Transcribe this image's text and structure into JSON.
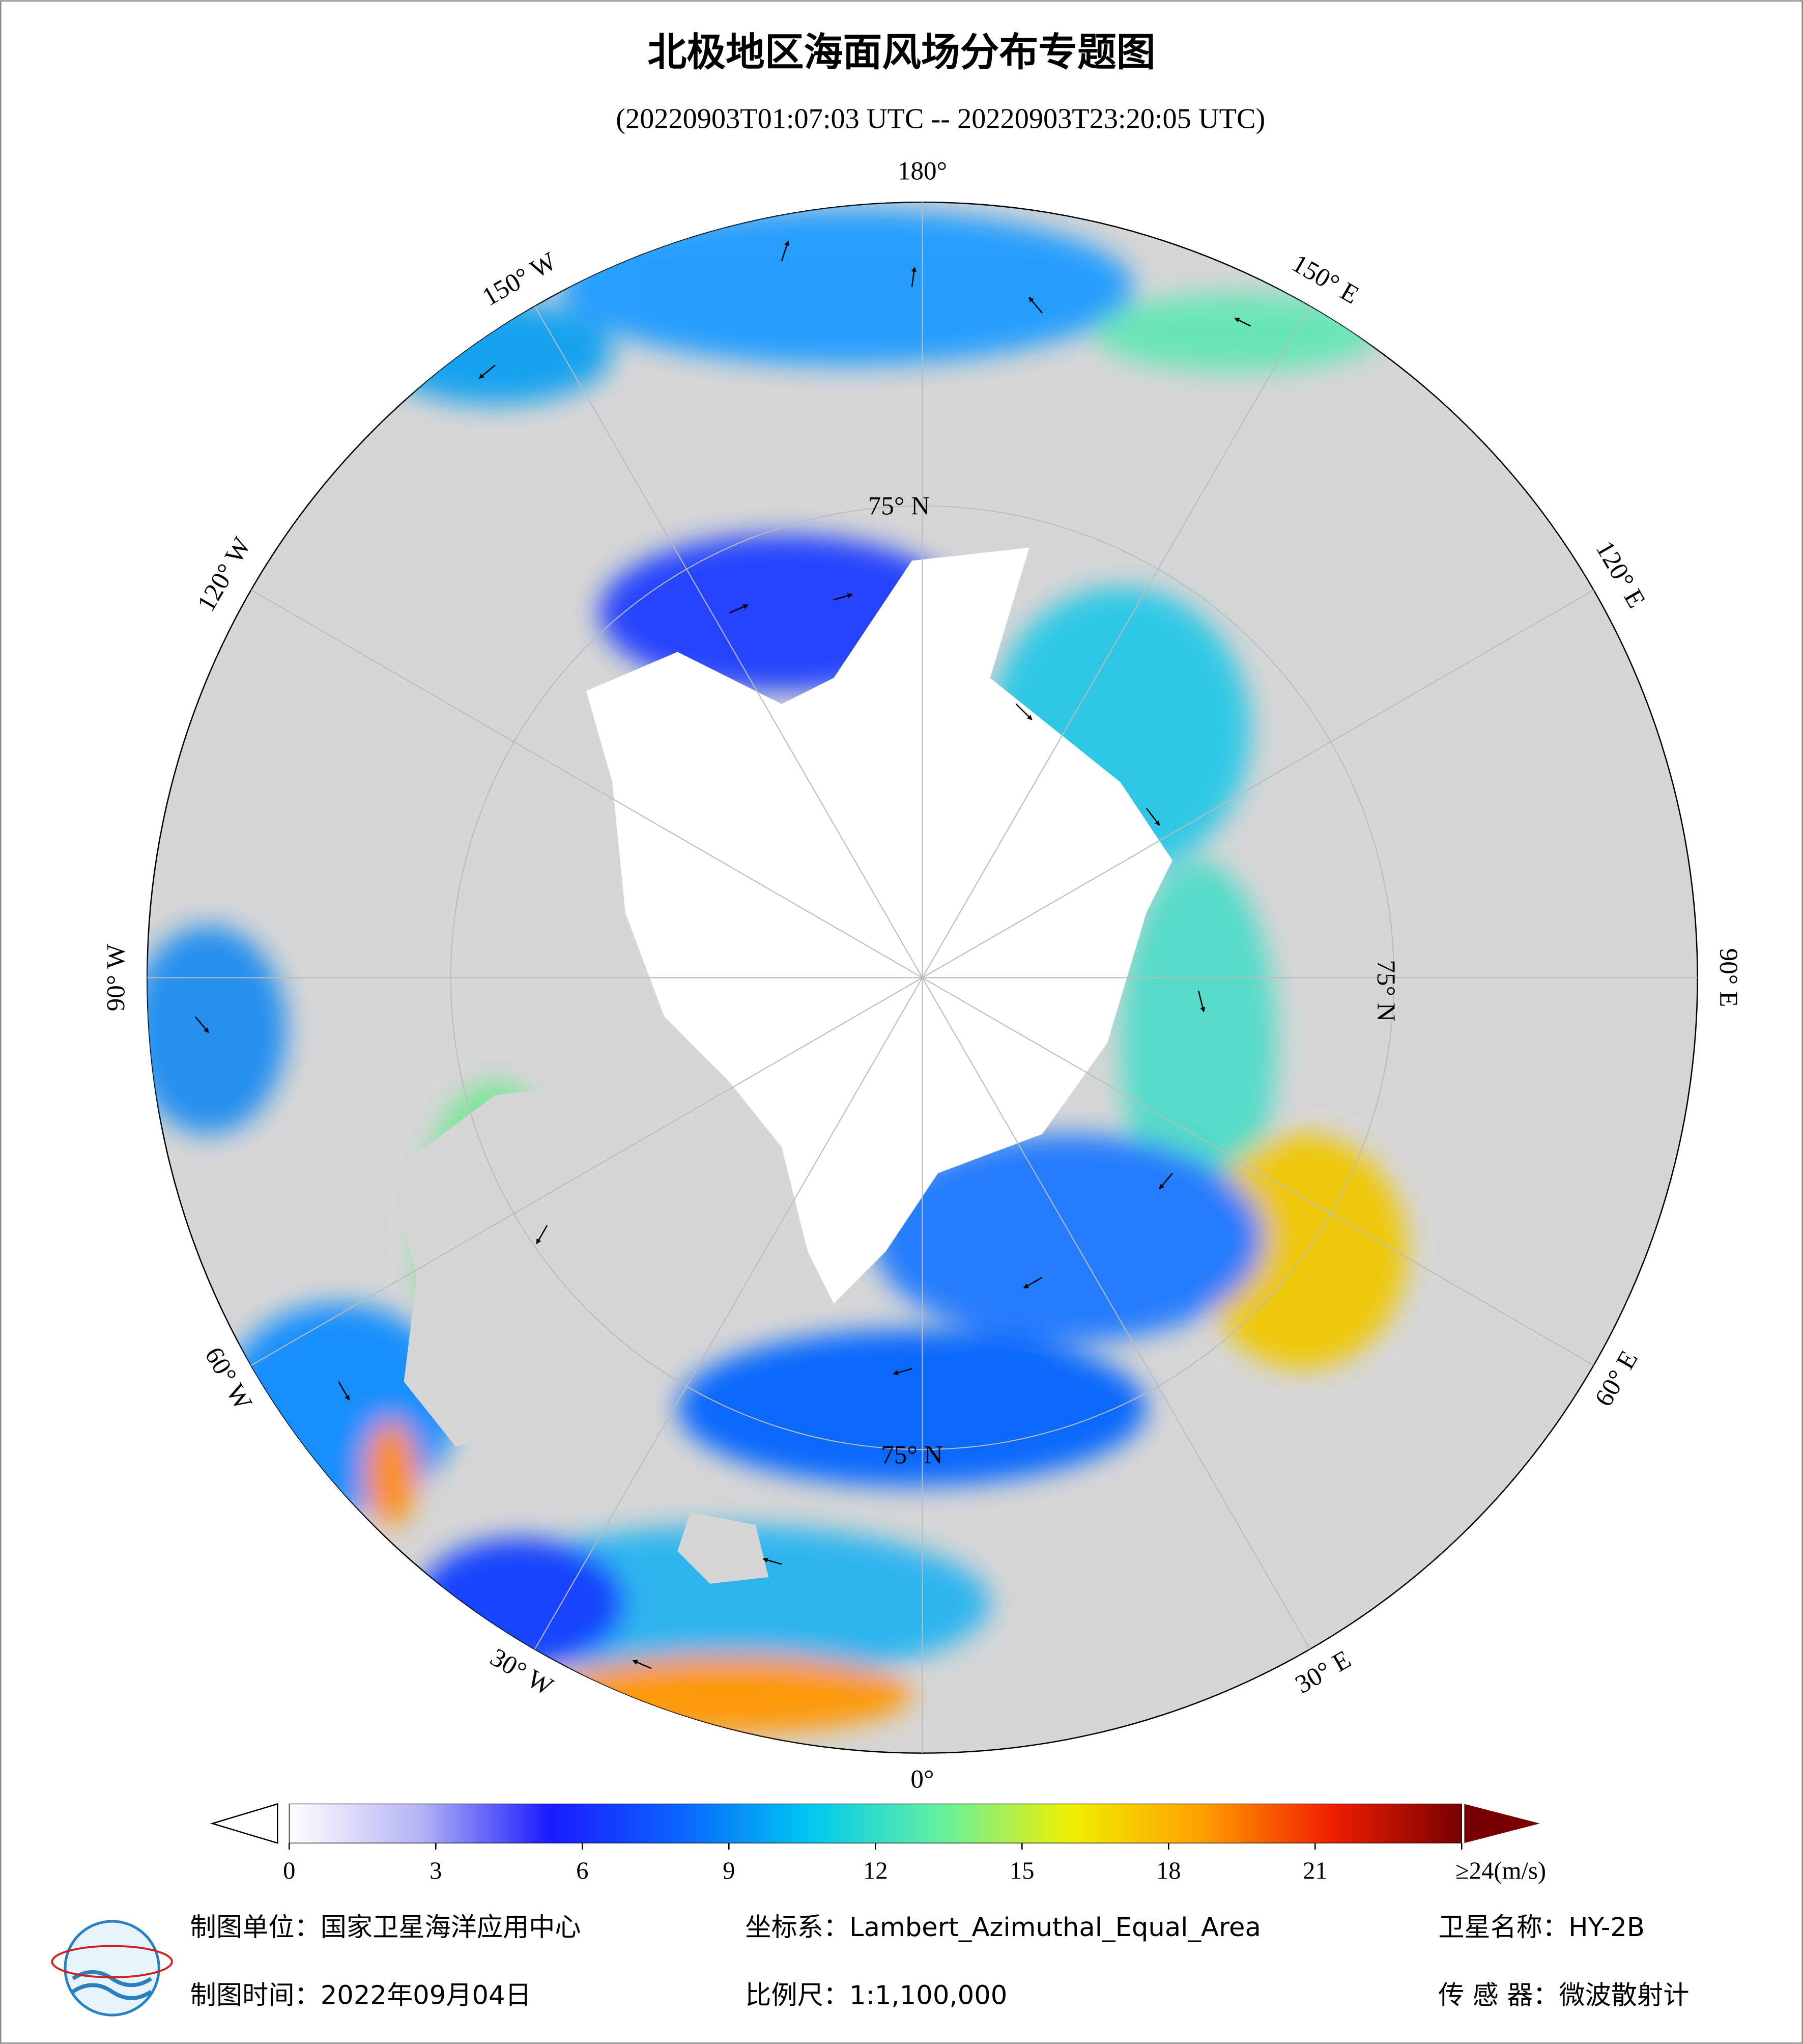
{
  "title": "北极地区海面风场分布专题图",
  "subtitle": "(20220903T01:07:03 UTC -- 20220903T23:20:05 UTC)",
  "map": {
    "longitude_labels": [
      "0°",
      "30° E",
      "60° E",
      "90° E",
      "120° E",
      "150° E",
      "180°",
      "150° W",
      "120° W",
      "90° W",
      "60° W",
      "30° W"
    ],
    "latitude_labels": [
      "75° N",
      "75° N",
      "75° N"
    ]
  },
  "colorbar": {
    "range": [
      0,
      24
    ],
    "colors": [
      "#ffffff",
      "#b4b4f5",
      "#1a1aff",
      "#0a64ff",
      "#00c8f0",
      "#64f0a0",
      "#f0f000",
      "#ffa000",
      "#f01e00",
      "#780000"
    ],
    "ticks": [
      0,
      3,
      6,
      9,
      12,
      15,
      18,
      21,
      {
        "value": 24,
        "label": "≥24(m/s)"
      }
    ]
  },
  "footer": {
    "producer": "制图单位：国家卫星海洋应用中心",
    "date": "制图时间：2022年09月04日",
    "projection": "坐标系：Lambert_Azimuthal_Equal_Area",
    "scale": "比例尺：1:1,100,000",
    "satellite": "卫星名称：HY-2B",
    "sensor": "传 感 器：微波散射计"
  }
}
